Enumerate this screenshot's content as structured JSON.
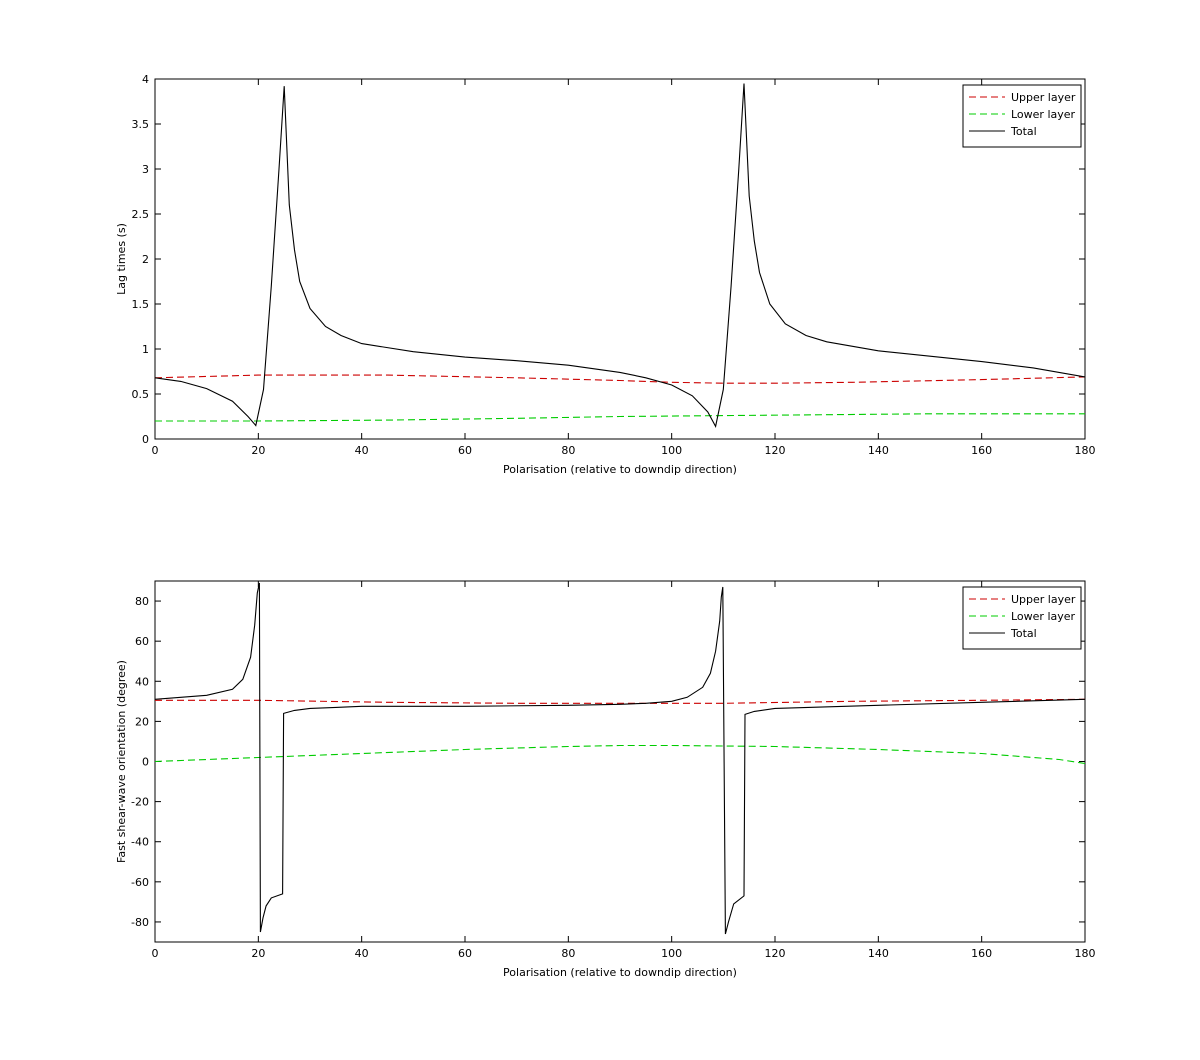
{
  "chart_data": [
    {
      "type": "line",
      "xlabel": "Polarisation (relative to downdip direction)",
      "ylabel": "Lag times (s)",
      "xlim": [
        0,
        180
      ],
      "ylim": [
        0,
        4
      ],
      "xticks": [
        0,
        20,
        40,
        60,
        80,
        100,
        120,
        140,
        160,
        180
      ],
      "yticks": [
        0,
        0.5,
        1,
        1.5,
        2,
        2.5,
        3,
        3.5,
        4
      ],
      "grid": false,
      "legend": "top-right",
      "series": [
        {
          "name": "Upper layer",
          "color": "#cc0000",
          "dash": "dashed",
          "x": [
            0,
            20,
            45,
            70,
            90,
            100,
            110,
            120,
            135,
            160,
            180
          ],
          "y": [
            0.68,
            0.71,
            0.71,
            0.68,
            0.65,
            0.63,
            0.62,
            0.62,
            0.63,
            0.66,
            0.69
          ]
        },
        {
          "name": "Lower layer",
          "color": "#00cc00",
          "dash": "dashed",
          "x": [
            0,
            20,
            45,
            70,
            90,
            110,
            130,
            150,
            180
          ],
          "y": [
            0.2,
            0.2,
            0.21,
            0.23,
            0.25,
            0.26,
            0.27,
            0.28,
            0.28
          ]
        },
        {
          "name": "Total",
          "color": "#000000",
          "dash": "solid",
          "x": [
            0,
            5,
            10,
            15,
            18,
            19.5,
            21,
            22.5,
            24,
            25,
            26,
            27,
            28,
            30,
            33,
            36,
            40,
            50,
            60,
            70,
            80,
            90,
            95,
            100,
            104,
            107,
            108.5,
            110,
            111.5,
            113,
            114,
            115,
            116,
            117,
            119,
            122,
            126,
            130,
            140,
            150,
            160,
            170,
            180
          ],
          "y": [
            0.68,
            0.64,
            0.56,
            0.42,
            0.25,
            0.15,
            0.55,
            1.7,
            3.0,
            3.92,
            2.6,
            2.1,
            1.75,
            1.45,
            1.25,
            1.15,
            1.06,
            0.97,
            0.91,
            0.87,
            0.82,
            0.74,
            0.68,
            0.6,
            0.48,
            0.3,
            0.14,
            0.55,
            1.7,
            3.0,
            3.95,
            2.7,
            2.2,
            1.85,
            1.5,
            1.28,
            1.15,
            1.08,
            0.98,
            0.92,
            0.86,
            0.79,
            0.69
          ]
        }
      ]
    },
    {
      "type": "line",
      "xlabel": "Polarisation (relative to downdip direction)",
      "ylabel": "Fast shear-wave orientation (degree)",
      "xlim": [
        0,
        180
      ],
      "ylim": [
        -90,
        90
      ],
      "xticks": [
        0,
        20,
        40,
        60,
        80,
        100,
        120,
        140,
        160,
        180
      ],
      "yticks": [
        -80,
        -60,
        -40,
        -20,
        0,
        20,
        40,
        60,
        80
      ],
      "grid": false,
      "legend": "top-right",
      "series": [
        {
          "name": "Upper layer",
          "color": "#cc0000",
          "dash": "dashed",
          "x": [
            0,
            20,
            45,
            70,
            90,
            110,
            135,
            160,
            180
          ],
          "y": [
            30.5,
            30.5,
            29.5,
            29,
            29,
            29,
            30,
            30.5,
            31
          ]
        },
        {
          "name": "Lower layer",
          "color": "#00cc00",
          "dash": "dashed",
          "x": [
            0,
            20,
            40,
            60,
            80,
            90,
            100,
            120,
            140,
            160,
            175,
            180
          ],
          "y": [
            0,
            2,
            4,
            6,
            7.5,
            8,
            8,
            7.5,
            6,
            4,
            1,
            -1
          ]
        },
        {
          "name": "Total",
          "color": "#000000",
          "dash": "solid",
          "x": [
            0,
            5,
            10,
            15,
            17,
            18.5,
            19.3,
            19.8,
            20.2,
            20.4,
            20.9,
            21.5,
            22.5,
            24.7,
            24.9,
            27,
            30,
            35,
            40,
            60,
            80,
            90,
            95,
            100,
            103,
            106,
            107.5,
            108.5,
            109.3,
            109.6,
            109.9,
            110.4,
            111,
            112,
            114,
            114.2,
            116,
            120,
            140,
            160,
            180
          ],
          "y": [
            31,
            32,
            33,
            36,
            41,
            52,
            68,
            84,
            89,
            -85,
            -78,
            -72,
            -68,
            -66,
            24,
            25.5,
            26.5,
            27,
            27.5,
            27.5,
            28,
            28.5,
            29,
            30,
            32,
            37,
            44,
            55,
            70,
            82,
            87,
            -86,
            -80,
            -71,
            -67,
            23.5,
            25,
            26.5,
            28,
            29.5,
            31
          ]
        }
      ]
    }
  ]
}
